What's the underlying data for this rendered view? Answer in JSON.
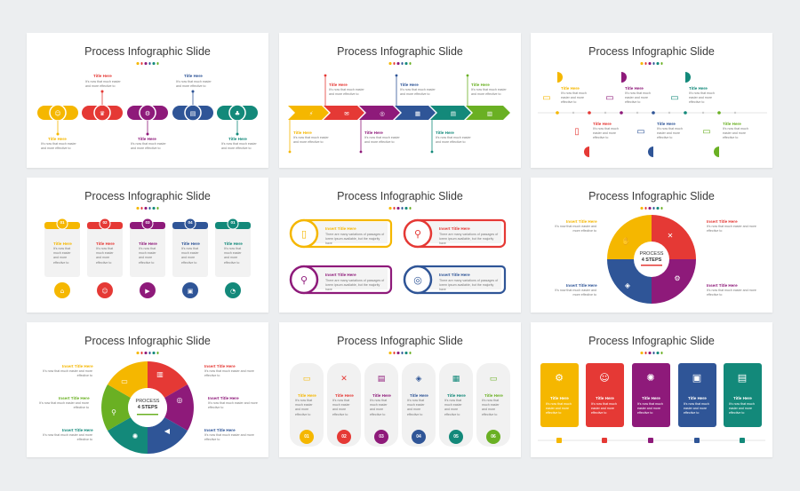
{
  "slide_title": "Process Infographic Slide",
  "colors": {
    "yellow": "#f5b700",
    "red": "#e53935",
    "purple": "#8e1a7a",
    "blue": "#2f5597",
    "teal": "#13897a",
    "green": "#6ab023"
  },
  "labels": {
    "title_here": "Title Here",
    "insert_title_here": "Insert Title Here",
    "short_text": "It's now that much easier and more effective to",
    "long_text": "There are many variations of passages of lorem ipsum available, but the majority have",
    "process": "PROCESS",
    "four_steps": "4 STEPS"
  },
  "numbers": {
    "slide4": [
      "01",
      "02",
      "03",
      "04",
      "01"
    ],
    "slide8": [
      "01",
      "02",
      "03",
      "04",
      "05",
      "06"
    ]
  }
}
